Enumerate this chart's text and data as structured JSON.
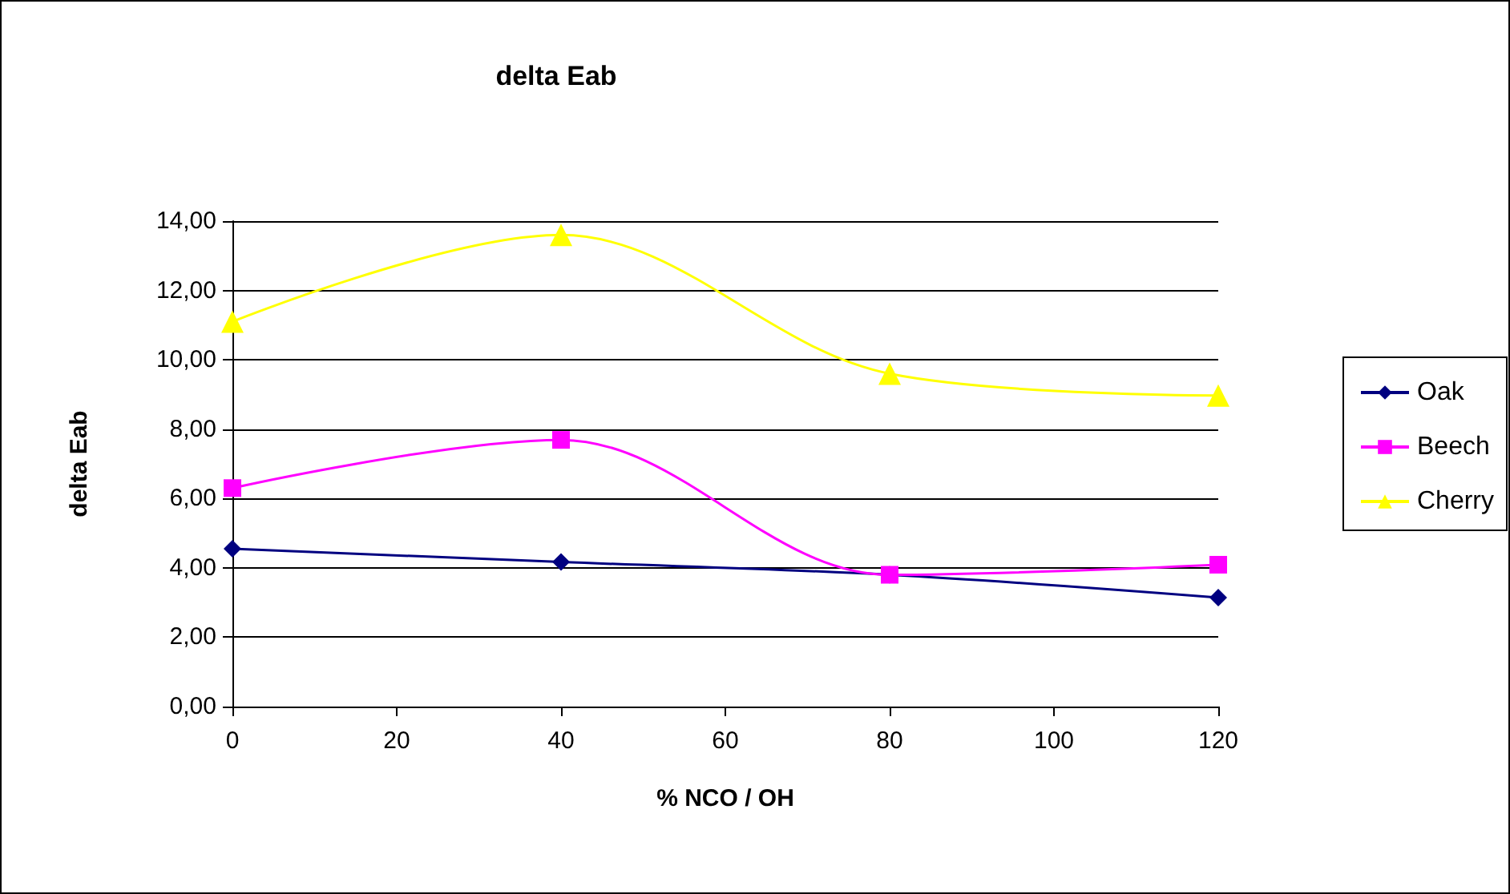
{
  "chart_data": {
    "type": "line",
    "title": "delta Eab",
    "xlabel": "% NCO / OH",
    "ylabel": "delta Eab",
    "x": [
      0,
      40,
      80,
      120
    ],
    "series": [
      {
        "name": "Oak",
        "color": "#000080",
        "marker": "diamond",
        "values": [
          4.55,
          4.17,
          3.8,
          3.14
        ]
      },
      {
        "name": "Beech",
        "color": "#ff00ff",
        "marker": "square",
        "values": [
          6.3,
          7.69,
          3.8,
          4.09
        ]
      },
      {
        "name": "Cherry",
        "color": "#ffff00",
        "marker": "triangle",
        "values": [
          11.1,
          13.6,
          9.6,
          8.97
        ]
      }
    ],
    "xlim": [
      0,
      120
    ],
    "xticks": [
      0,
      20,
      40,
      60,
      80,
      100,
      120
    ],
    "ylim": [
      0,
      14
    ],
    "yticks": [
      {
        "value": 0,
        "label": "0,00"
      },
      {
        "value": 2,
        "label": "2,00"
      },
      {
        "value": 4,
        "label": "4,00"
      },
      {
        "value": 6,
        "label": "6,00"
      },
      {
        "value": 8,
        "label": "8,00"
      },
      {
        "value": 10,
        "label": "10,00"
      },
      {
        "value": 12,
        "label": "12,00"
      },
      {
        "value": 14,
        "label": "14,00"
      }
    ],
    "grid": "y",
    "legend": "right"
  }
}
